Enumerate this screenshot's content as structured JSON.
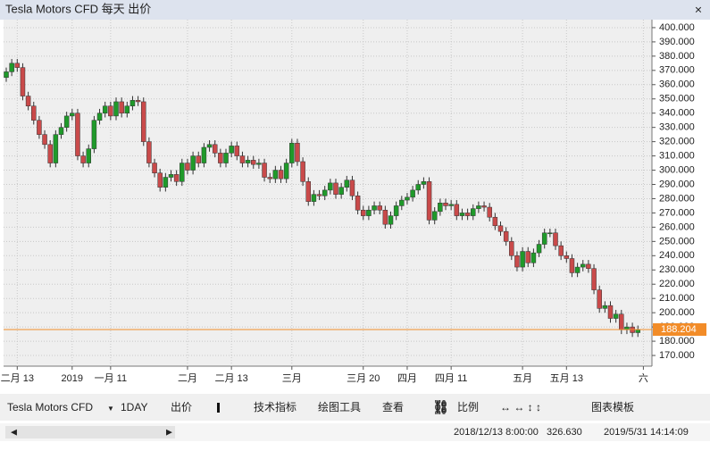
{
  "window": {
    "title": "Tesla Motors CFD 每天 出价"
  },
  "chart_data": {
    "type": "candlestick",
    "grid": true,
    "up_color": "#1f9a2a",
    "down_color": "#c94a4a",
    "last_price": 188.204,
    "last_price_label": "188.204",
    "last_price_color": "#f28c28",
    "ylim": [
      162.5,
      405.6
    ],
    "yticks": [
      {
        "value": 170,
        "label": "170.000"
      },
      {
        "value": 180,
        "label": "180.000"
      },
      {
        "value": 190,
        "label": "190.000"
      },
      {
        "value": 200,
        "label": "200.000"
      },
      {
        "value": 210,
        "label": "210.000"
      },
      {
        "value": 220,
        "label": "220.000"
      },
      {
        "value": 230,
        "label": "230.000"
      },
      {
        "value": 240,
        "label": "240.000"
      },
      {
        "value": 250,
        "label": "250.000"
      },
      {
        "value": 260,
        "label": "260.000"
      },
      {
        "value": 270,
        "label": "270.000"
      },
      {
        "value": 280,
        "label": "280.000"
      },
      {
        "value": 290,
        "label": "290.000"
      },
      {
        "value": 300,
        "label": "300.000"
      },
      {
        "value": 310,
        "label": "310.000"
      },
      {
        "value": 320,
        "label": "320.000"
      },
      {
        "value": 330,
        "label": "330.000"
      },
      {
        "value": 340,
        "label": "340.000"
      },
      {
        "value": 350,
        "label": "350.000"
      },
      {
        "value": 360,
        "label": "360.000"
      },
      {
        "value": 370,
        "label": "370.000"
      },
      {
        "value": 380,
        "label": "380.000"
      },
      {
        "value": 390,
        "label": "390.000"
      },
      {
        "value": 400,
        "label": "400.000"
      }
    ],
    "categories": [
      null,
      null,
      "二月 13",
      null,
      null,
      null,
      null,
      null,
      null,
      null,
      null,
      null,
      "2019",
      null,
      null,
      null,
      null,
      null,
      null,
      "一月 11",
      null,
      null,
      null,
      null,
      null,
      null,
      null,
      null,
      null,
      null,
      null,
      null,
      null,
      "二月",
      null,
      null,
      null,
      null,
      null,
      null,
      null,
      "二月 13",
      null,
      null,
      null,
      null,
      null,
      null,
      null,
      null,
      null,
      null,
      "三月",
      null,
      null,
      null,
      null,
      null,
      null,
      null,
      null,
      null,
      null,
      null,
      null,
      "三月 20",
      null,
      null,
      null,
      null,
      null,
      null,
      null,
      "四月",
      null,
      null,
      null,
      null,
      null,
      null,
      null,
      "四月 11",
      null,
      null,
      null,
      null,
      null,
      null,
      null,
      null,
      null,
      null,
      null,
      null,
      "五月",
      null,
      null,
      null,
      null,
      null,
      null,
      null,
      "五月 13",
      null,
      null,
      null,
      null,
      null,
      null,
      null,
      null,
      null,
      null,
      null,
      null,
      null,
      "六"
    ],
    "open": [
      365,
      369,
      375,
      372,
      352,
      345,
      335,
      325,
      318,
      305,
      325,
      330,
      338,
      340,
      310,
      305,
      315,
      335,
      340,
      345,
      338,
      348,
      340,
      345,
      349,
      348,
      320,
      305,
      298,
      288,
      295,
      297,
      292,
      305,
      300,
      310,
      305,
      316,
      318,
      312,
      305,
      312,
      317,
      310,
      305,
      307,
      304,
      305,
      295,
      294,
      300,
      294,
      305,
      319,
      306,
      292,
      278,
      283,
      282,
      286,
      291,
      283,
      288,
      293,
      282,
      272,
      268,
      272,
      275,
      272,
      262,
      268,
      275,
      279,
      281,
      286,
      290,
      292,
      265,
      271,
      277,
      275,
      276,
      268,
      270,
      268,
      273,
      275,
      274,
      267,
      261,
      257,
      250,
      240,
      232,
      243,
      235,
      242,
      248,
      256,
      256,
      247,
      240,
      238,
      228,
      232,
      234,
      231,
      216,
      203,
      205,
      196,
      199,
      188,
      190,
      186,
      null
    ],
    "high": [
      372,
      378,
      378,
      375,
      355,
      348,
      338,
      328,
      321,
      328,
      333,
      341,
      343,
      343,
      313,
      318,
      338,
      343,
      348,
      348,
      351,
      351,
      348,
      352,
      352,
      351,
      323,
      308,
      301,
      298,
      300,
      300,
      308,
      308,
      313,
      313,
      319,
      321,
      321,
      315,
      315,
      320,
      320,
      313,
      310,
      310,
      308,
      308,
      298,
      303,
      303,
      308,
      322,
      322,
      309,
      295,
      286,
      286,
      289,
      294,
      294,
      291,
      296,
      296,
      285,
      275,
      275,
      278,
      278,
      275,
      271,
      278,
      282,
      284,
      289,
      293,
      295,
      295,
      274,
      280,
      280,
      279,
      279,
      273,
      273,
      276,
      278,
      278,
      277,
      270,
      264,
      260,
      253,
      243,
      246,
      246,
      245,
      251,
      259,
      259,
      259,
      250,
      243,
      241,
      235,
      237,
      237,
      234,
      219,
      208,
      208,
      202,
      202,
      193,
      193,
      191,
      null
    ],
    "low": [
      362,
      366,
      369,
      349,
      342,
      332,
      322,
      315,
      302,
      302,
      322,
      327,
      335,
      307,
      302,
      302,
      312,
      332,
      337,
      335,
      335,
      337,
      337,
      342,
      345,
      317,
      302,
      295,
      285,
      285,
      292,
      289,
      289,
      297,
      297,
      302,
      302,
      313,
      309,
      302,
      302,
      309,
      307,
      302,
      302,
      301,
      301,
      292,
      291,
      291,
      291,
      291,
      302,
      303,
      289,
      275,
      275,
      279,
      279,
      283,
      280,
      280,
      285,
      279,
      269,
      265,
      265,
      269,
      269,
      259,
      259,
      265,
      272,
      276,
      278,
      283,
      287,
      262,
      262,
      268,
      272,
      272,
      265,
      265,
      265,
      265,
      270,
      271,
      264,
      258,
      254,
      247,
      237,
      229,
      229,
      232,
      232,
      239,
      245,
      253,
      244,
      237,
      235,
      225,
      225,
      229,
      228,
      213,
      200,
      200,
      193,
      193,
      185,
      185,
      183,
      183,
      null
    ],
    "close": [
      369,
      375,
      372,
      352,
      345,
      335,
      325,
      318,
      305,
      325,
      330,
      338,
      340,
      310,
      305,
      315,
      335,
      340,
      345,
      338,
      348,
      340,
      345,
      349,
      348,
      320,
      305,
      298,
      288,
      295,
      297,
      292,
      305,
      300,
      310,
      305,
      316,
      318,
      312,
      305,
      312,
      317,
      310,
      305,
      307,
      304,
      305,
      295,
      294,
      300,
      294,
      305,
      319,
      306,
      292,
      278,
      283,
      282,
      286,
      291,
      283,
      288,
      293,
      282,
      272,
      268,
      272,
      275,
      272,
      262,
      268,
      275,
      279,
      281,
      286,
      290,
      292,
      265,
      271,
      277,
      275,
      276,
      268,
      270,
      268,
      273,
      275,
      274,
      267,
      261,
      257,
      250,
      240,
      232,
      243,
      235,
      242,
      248,
      256,
      256,
      247,
      240,
      238,
      228,
      232,
      234,
      231,
      216,
      203,
      205,
      196,
      199,
      188,
      190,
      186,
      188,
      null
    ]
  },
  "toolbar": {
    "symbol": "Tesla Motors CFD",
    "period": "1DAY",
    "price_type": "出价",
    "indicators": "技术指标",
    "drawing": "绘图工具",
    "view": "查看",
    "scale": "比例",
    "templates": "图表模板"
  },
  "status": {
    "start_time": "2018/12/13 8:00:00",
    "price": "326.630",
    "end_time": "2019/5/31 14:14:09"
  }
}
